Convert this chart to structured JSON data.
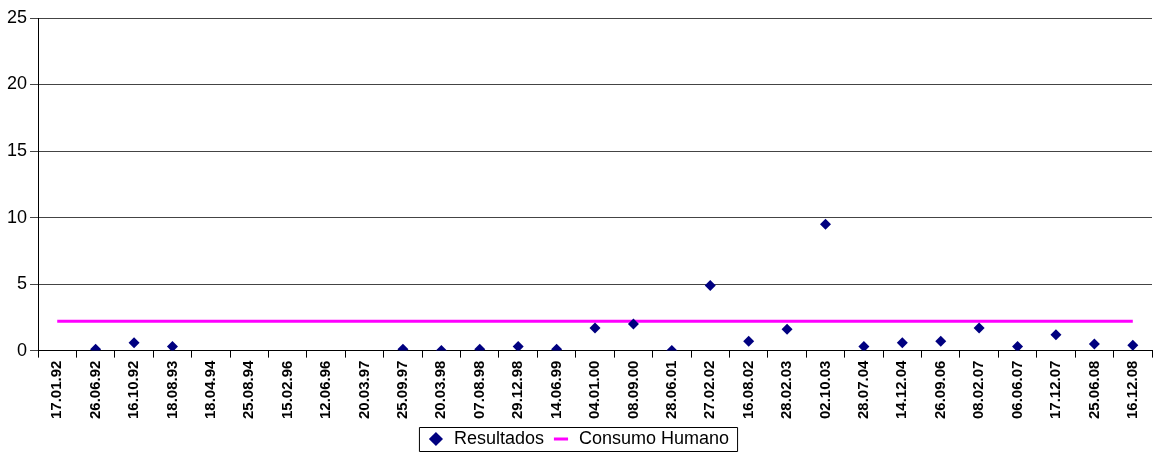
{
  "chart_data": {
    "type": "scatter",
    "categories": [
      "17.01.92",
      "26.06.92",
      "16.10.92",
      "18.08.93",
      "18.04.94",
      "25.08.94",
      "15.02.96",
      "12.06.96",
      "20.03.97",
      "25.09.97",
      "20.03.98",
      "07.08.98",
      "29.12.98",
      "14.06.99",
      "04.01.00",
      "08.09.00",
      "28.06.01",
      "27.02.02",
      "16.08.02",
      "28.02.03",
      "02.10.03",
      "28.07.04",
      "14.12.04",
      "26.09.06",
      "08.02.07",
      "06.06.07",
      "17.12.07",
      "25.06.08",
      "16.12.08"
    ],
    "series": [
      {
        "name": "Resultados",
        "color": "#000080",
        "marker": "diamond",
        "values": [
          null,
          0.1,
          0.6,
          0.3,
          null,
          null,
          null,
          null,
          null,
          0.1,
          0.0,
          0.1,
          0.3,
          0.1,
          1.7,
          2.0,
          0.0,
          4.9,
          0.7,
          1.6,
          9.5,
          0.3,
          0.6,
          0.7,
          1.7,
          0.3,
          1.2,
          0.5,
          0.4
        ]
      },
      {
        "name": "Consumo Humano",
        "type": "line",
        "color": "#ff00ff",
        "marker": "none",
        "values": [
          2.2,
          2.2,
          2.2,
          2.2,
          2.2,
          2.2,
          2.2,
          2.2,
          2.2,
          2.2,
          2.2,
          2.2,
          2.2,
          2.2,
          2.2,
          2.2,
          2.2,
          2.2,
          2.2,
          2.2,
          2.2,
          2.2,
          2.2,
          2.2,
          2.2,
          2.2,
          2.2,
          2.2,
          2.2
        ]
      }
    ],
    "ylim": [
      0,
      25
    ],
    "yticks": [
      0,
      5,
      10,
      15,
      20,
      25
    ],
    "grid": "y",
    "legend": "bottom"
  }
}
